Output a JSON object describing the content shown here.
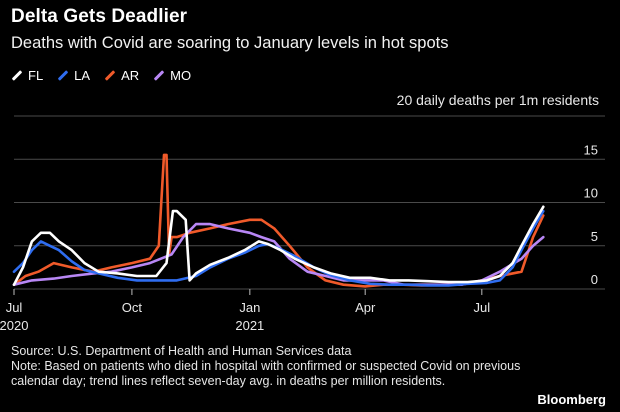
{
  "header": {
    "title": "Delta Gets Deadlier",
    "subtitle": "Deaths with Covid are soaring to January levels in hot spots"
  },
  "footer": {
    "source": "Source: U.S. Department of Health and Human Services data",
    "note": "Note: Based on patients who died in hospital with confirmed or suspected Covid on previous calendar day; trend lines reflect seven-day avg. in deaths per million residents.",
    "brand": "Bloomberg"
  },
  "colors": {
    "background": "#000000",
    "FL": "#ffffff",
    "LA": "#2f6df0",
    "AR": "#f05a2a",
    "MO": "#b887f5",
    "grid": "#4a4a4a"
  },
  "chart_data": {
    "type": "line",
    "title": "Delta Gets Deadlier",
    "subtitle": "Deaths with Covid are soaring to January levels in hot spots",
    "ylabel": "20 daily deaths per 1m residents",
    "ylim": [
      0,
      20
    ],
    "yticks": [
      0,
      5,
      10,
      15,
      20
    ],
    "ytick_labels": [
      "0",
      "5",
      "10",
      "15",
      ""
    ],
    "xlim": [
      "2020-07-01",
      "2021-08-31"
    ],
    "xticks": [
      {
        "date": "2020-07-01",
        "label": "Jul",
        "sub": "2020"
      },
      {
        "date": "2020-10-01",
        "label": "Oct",
        "sub": ""
      },
      {
        "date": "2021-01-01",
        "label": "Jan",
        "sub": "2021"
      },
      {
        "date": "2021-04-01",
        "label": "Apr",
        "sub": ""
      },
      {
        "date": "2021-07-01",
        "label": "Jul",
        "sub": ""
      }
    ],
    "grid": "horizontal",
    "legend": "top-left",
    "series": [
      {
        "name": "FL",
        "x": [
          "2020-07-01",
          "2020-07-08",
          "2020-07-15",
          "2020-07-22",
          "2020-07-29",
          "2020-08-05",
          "2020-08-15",
          "2020-08-25",
          "2020-09-05",
          "2020-09-20",
          "2020-10-05",
          "2020-10-20",
          "2020-10-28",
          "2020-11-02",
          "2020-11-05",
          "2020-11-12",
          "2020-11-15",
          "2020-11-20",
          "2020-12-01",
          "2020-12-15",
          "2020-12-28",
          "2021-01-08",
          "2021-01-15",
          "2021-01-25",
          "2021-02-05",
          "2021-02-20",
          "2021-03-05",
          "2021-03-20",
          "2021-04-05",
          "2021-04-20",
          "2021-05-05",
          "2021-05-20",
          "2021-06-05",
          "2021-06-20",
          "2021-07-05",
          "2021-07-15",
          "2021-07-25",
          "2021-08-01",
          "2021-08-10",
          "2021-08-18"
        ],
        "values": [
          0.5,
          2.5,
          5.5,
          6.5,
          6.5,
          5.5,
          4.5,
          3,
          2,
          1.8,
          1.5,
          1.5,
          3,
          9,
          9,
          8,
          1,
          1.8,
          2.8,
          3.6,
          4.5,
          5.5,
          5.2,
          4.5,
          3.5,
          2.5,
          1.8,
          1.3,
          1.3,
          1,
          1,
          0.9,
          0.8,
          0.8,
          1,
          1.5,
          3,
          5,
          7.5,
          9.5
        ]
      },
      {
        "name": "LA",
        "x": [
          "2020-07-01",
          "2020-07-08",
          "2020-07-15",
          "2020-07-22",
          "2020-07-29",
          "2020-08-05",
          "2020-08-15",
          "2020-08-25",
          "2020-09-05",
          "2020-09-20",
          "2020-10-05",
          "2020-10-20",
          "2020-11-05",
          "2020-11-20",
          "2020-12-01",
          "2020-12-15",
          "2020-12-28",
          "2021-01-08",
          "2021-01-15",
          "2021-01-25",
          "2021-02-05",
          "2021-02-20",
          "2021-03-05",
          "2021-03-20",
          "2021-04-05",
          "2021-04-20",
          "2021-05-05",
          "2021-05-20",
          "2021-06-05",
          "2021-06-20",
          "2021-07-05",
          "2021-07-15",
          "2021-07-25",
          "2021-08-01",
          "2021-08-10",
          "2021-08-18"
        ],
        "values": [
          2,
          3,
          4.5,
          5.5,
          5,
          4.5,
          3.2,
          2.2,
          1.8,
          1.3,
          1,
          1,
          1,
          1.5,
          2.5,
          3.5,
          4.2,
          5,
          5.2,
          4.6,
          3.8,
          2.5,
          1.6,
          1,
          0.6,
          0.5,
          0.5,
          0.4,
          0.4,
          0.6,
          0.7,
          1,
          2.5,
          4.5,
          7,
          9
        ]
      },
      {
        "name": "AR",
        "x": [
          "2020-07-01",
          "2020-07-10",
          "2020-07-20",
          "2020-08-01",
          "2020-08-15",
          "2020-09-01",
          "2020-09-15",
          "2020-10-01",
          "2020-10-15",
          "2020-10-22",
          "2020-10-26",
          "2020-10-28",
          "2020-10-30",
          "2020-11-01",
          "2020-11-05",
          "2020-11-15",
          "2020-12-01",
          "2020-12-15",
          "2021-01-01",
          "2021-01-10",
          "2021-01-20",
          "2021-02-01",
          "2021-02-15",
          "2021-03-01",
          "2021-03-15",
          "2021-04-01",
          "2021-04-15",
          "2021-05-01",
          "2021-05-15",
          "2021-06-01",
          "2021-06-15",
          "2021-07-01",
          "2021-07-15",
          "2021-08-01",
          "2021-08-10",
          "2021-08-18"
        ],
        "values": [
          0.5,
          1.5,
          2,
          3,
          2.5,
          2,
          2.5,
          3,
          3.5,
          5,
          15.5,
          15.5,
          4,
          6,
          6,
          6.5,
          7,
          7.5,
          8,
          8,
          7,
          5,
          2.5,
          1,
          0.5,
          0.3,
          0.5,
          0.5,
          0.4,
          0.5,
          0.5,
          1,
          1.5,
          2,
          6,
          8.5
        ]
      },
      {
        "name": "MO",
        "x": [
          "2020-07-01",
          "2020-07-15",
          "2020-08-01",
          "2020-08-15",
          "2020-09-01",
          "2020-09-15",
          "2020-10-01",
          "2020-10-15",
          "2020-11-01",
          "2020-11-10",
          "2020-11-20",
          "2020-12-01",
          "2020-12-15",
          "2021-01-01",
          "2021-01-10",
          "2021-01-20",
          "2021-02-01",
          "2021-02-15",
          "2021-03-01",
          "2021-03-15",
          "2021-04-01",
          "2021-04-15",
          "2021-05-01",
          "2021-05-15",
          "2021-06-01",
          "2021-06-15",
          "2021-07-01",
          "2021-07-15",
          "2021-08-01",
          "2021-08-10",
          "2021-08-18"
        ],
        "values": [
          0.5,
          1,
          1.2,
          1.5,
          1.8,
          2,
          2.5,
          3,
          4,
          6,
          7.5,
          7.5,
          7,
          6.5,
          6,
          5.5,
          3.5,
          2,
          1.5,
          1,
          1,
          1,
          0.5,
          0.5,
          0.5,
          0.5,
          1,
          2,
          3.5,
          5,
          6
        ]
      }
    ]
  }
}
